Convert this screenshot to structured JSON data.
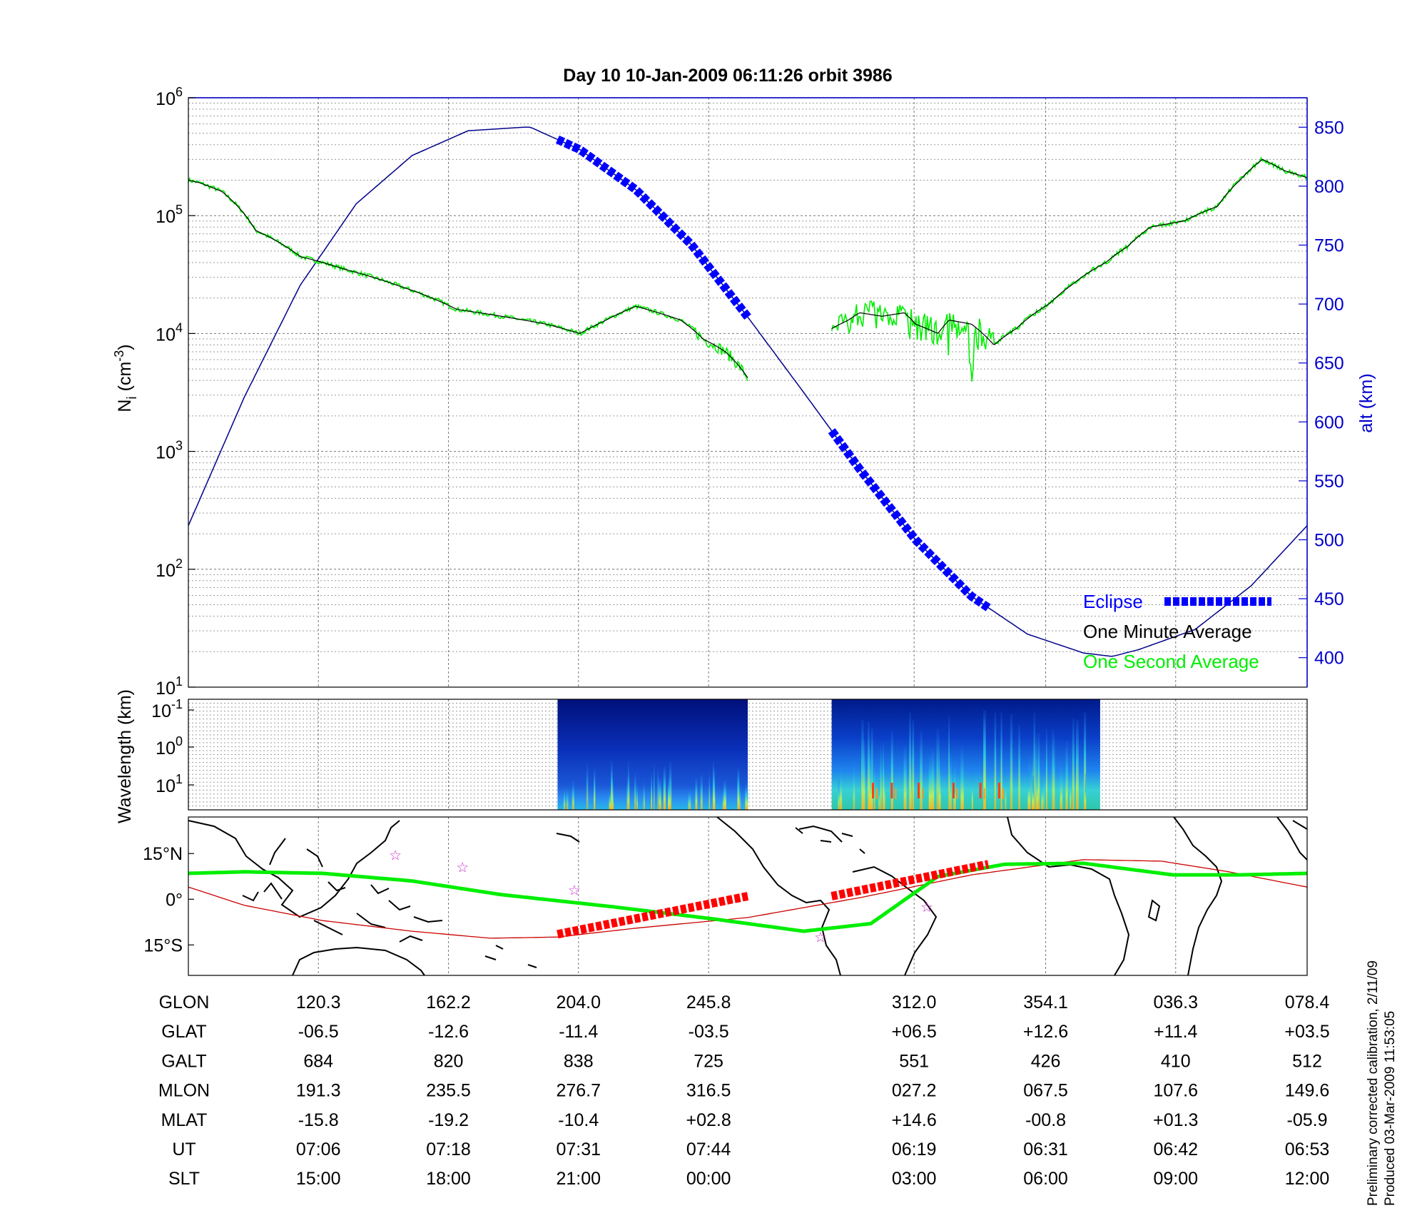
{
  "title": "Day 10  10-Jan-2009 06:11:26   orbit 3986",
  "footnote": [
    "Preliminary corrected calibration, 2/11/09",
    "Produced 03-Mar-2009 11:53:05"
  ],
  "colors": {
    "eclipse": "#0000ff",
    "minute_avg": "#000000",
    "second_avg": "#00ee00",
    "altitude": "#00008b",
    "axis_right": "#0000cc",
    "magnetic_equator": "#cc0000",
    "orbit_track": "#00ee00",
    "eclipse_track": "#ff0000",
    "stars": "#cc33cc"
  },
  "chart_data": [
    {
      "type": "line",
      "panel": "density",
      "x_ticks_slt": [
        "15:00",
        "18:00",
        "21:00",
        "00:00",
        "03:00",
        "06:00",
        "09:00",
        "12:00"
      ],
      "ylabel": "N_i (cm^-3)",
      "ylabel_parts": {
        "main": "N",
        "sub": "i",
        "unit": " (cm",
        "sup": "-3",
        "close": ")"
      },
      "yscale": "log",
      "ylim": [
        10,
        1000000
      ],
      "y_tick_labels": [
        {
          "base": "10",
          "exp": "1"
        },
        {
          "base": "10",
          "exp": "2"
        },
        {
          "base": "10",
          "exp": "3"
        },
        {
          "base": "10",
          "exp": "4"
        },
        {
          "base": "10",
          "exp": "5"
        },
        {
          "base": "10",
          "exp": "6"
        }
      ],
      "y2label": "alt (km)",
      "y2lim": [
        375,
        875
      ],
      "y2_ticks": [
        "400",
        "450",
        "500",
        "550",
        "600",
        "650",
        "700",
        "750",
        "800",
        "850"
      ],
      "legend": {
        "position": "bottom-right",
        "entries": [
          "Eclipse",
          "One Minute Average",
          "One Second Average"
        ]
      },
      "grid": true,
      "series": [
        {
          "name": "One Minute Average",
          "segment": 1,
          "t": [
            0,
            0.01,
            0.03,
            0.06,
            0.1,
            0.14,
            0.19,
            0.24,
            0.28,
            0.32,
            0.35,
            0.37,
            0.4,
            0.42,
            0.44,
            0.46,
            0.48,
            0.5
          ],
          "density": [
            200000,
            190000,
            160000,
            75000,
            45000,
            35000,
            25000,
            16000,
            14000,
            12000,
            10000,
            12500,
            17000,
            15000,
            13000,
            9000,
            7000,
            4200
          ]
        },
        {
          "name": "One Minute Average",
          "segment": 2,
          "t": [
            0.575,
            0.59,
            0.6,
            0.62,
            0.64,
            0.65,
            0.67,
            0.68,
            0.7,
            0.72,
            0.74,
            0.77,
            0.79,
            0.82,
            0.84,
            0.86,
            0.89,
            0.92,
            0.94,
            0.96,
            0.98,
            1.0
          ],
          "density": [
            11000,
            13000,
            15000,
            14000,
            15000,
            12000,
            10000,
            13000,
            12000,
            8000,
            11000,
            18000,
            26000,
            40000,
            55000,
            80000,
            90000,
            120000,
            200000,
            300000,
            240000,
            210000
          ]
        },
        {
          "name": "Altitude",
          "t": [
            0,
            0.05,
            0.1,
            0.15,
            0.2,
            0.25,
            0.3,
            0.3057,
            0.35,
            0.4,
            0.45,
            0.5,
            0.55,
            0.6,
            0.65,
            0.7,
            0.75,
            0.8,
            0.8257,
            0.85,
            0.9,
            0.95,
            1.0
          ],
          "altitude": [
            512,
            621,
            716,
            785,
            826,
            847,
            850,
            850,
            831,
            797,
            750,
            689,
            625,
            560,
            500,
            452,
            420,
            404,
            401,
            407,
            424,
            461,
            512
          ]
        }
      ],
      "eclipse": [
        {
          "t_start": 0.33,
          "t_end": 0.5
        },
        {
          "t_start": 0.575,
          "t_end": 0.715
        }
      ]
    },
    {
      "type": "heatmap",
      "panel": "spectrogram",
      "ylabel": "Wavelength (km)",
      "y_tick_labels": [
        {
          "base": "10",
          "exp": "-1"
        },
        {
          "base": "10",
          "exp": "0"
        },
        {
          "base": "10",
          "exp": "1"
        }
      ],
      "data_intervals": [
        {
          "t_start": 0.33,
          "t_end": 0.5
        },
        {
          "t_start": 0.575,
          "t_end": 0.815
        }
      ]
    },
    {
      "type": "map",
      "panel": "map",
      "y_ticks": [
        "15°N",
        "0°",
        "15°S"
      ],
      "lat_range": [
        -25,
        27
      ],
      "orbit_track": {
        "t": [
          0,
          0.05,
          0.12,
          0.2,
          0.28,
          0.38,
          0.47,
          0.55,
          0.61,
          0.67,
          0.73,
          0.8,
          0.88,
          0.94,
          1.0
        ],
        "lat": [
          8.5,
          9,
          8.5,
          6,
          1.5,
          -2.5,
          -6.5,
          -10.5,
          -8,
          7.5,
          11.5,
          11.8,
          8,
          8,
          8.5
        ]
      },
      "magnetic_equator": {
        "t": [
          0,
          0.05,
          0.12,
          0.2,
          0.27,
          0.33,
          0.4,
          0.5,
          0.6,
          0.7,
          0.8,
          0.87,
          0.93,
          1.0
        ],
        "lat": [
          4,
          -2,
          -7,
          -10.5,
          -12.8,
          -12.4,
          -9.5,
          -6,
          0.5,
          8,
          13,
          12.5,
          9,
          4
        ]
      },
      "eclipse_track": [
        {
          "t": [
            0.33,
            0.5
          ],
          "lat": [
            -11.5,
            1
          ]
        },
        {
          "t": [
            0.575,
            0.715
          ],
          "lat": [
            1,
            11.5
          ]
        }
      ],
      "stars": [
        {
          "t": 0.185,
          "lat": 14.5
        },
        {
          "t": 0.245,
          "lat": 10.5
        },
        {
          "t": 0.345,
          "lat": 3
        },
        {
          "t": 0.565,
          "lat": -12.5
        },
        {
          "t": 0.66,
          "lat": -2.5
        }
      ]
    }
  ],
  "table": {
    "row_labels": [
      "GLON",
      "GLAT",
      "GALT",
      "MLON",
      "MLAT",
      "UT",
      "SLT"
    ],
    "columns": [
      [
        "120.3",
        "-06.5",
        "684",
        "191.3",
        "-15.8",
        "07:06",
        "15:00"
      ],
      [
        "162.2",
        "-12.6",
        "820",
        "235.5",
        "-19.2",
        "07:18",
        "18:00"
      ],
      [
        "204.0",
        "-11.4",
        "838",
        "276.7",
        "-10.4",
        "07:31",
        "21:00"
      ],
      [
        "245.8",
        "-03.5",
        "725",
        "316.5",
        "+02.8",
        "07:44",
        "00:00"
      ],
      [
        "312.0",
        "+06.5",
        "551",
        "027.2",
        "+14.6",
        "06:19",
        "03:00"
      ],
      [
        "354.1",
        "+12.6",
        "426",
        "067.5",
        "-00.8",
        "06:31",
        "06:00"
      ],
      [
        "036.3",
        "+11.4",
        "410",
        "107.6",
        "+01.3",
        "06:42",
        "09:00"
      ],
      [
        "078.4",
        "+03.5",
        "512",
        "149.6",
        "-05.9",
        "06:53",
        "12:00"
      ]
    ]
  }
}
